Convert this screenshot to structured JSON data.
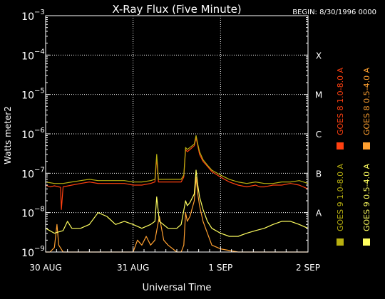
{
  "chart_data": {
    "type": "line",
    "title": "X-Ray Flux (Five Minute)",
    "begin_label": "BEGIN: 8/30/1996 0000",
    "ylabel": "Watts meter2",
    "xlabel": "Universal Time",
    "y_scale": "log",
    "ylim": [
      1e-09,
      0.001
    ],
    "xlim": [
      0,
      3
    ],
    "grid": true,
    "y_ticks": [
      {
        "value": 0.001,
        "base": "10",
        "exp": "−3"
      },
      {
        "value": 0.0001,
        "base": "10",
        "exp": "−4"
      },
      {
        "value": 1e-05,
        "base": "10",
        "exp": "−5"
      },
      {
        "value": 1e-06,
        "base": "10",
        "exp": "−6"
      },
      {
        "value": 1e-07,
        "base": "10",
        "exp": "−7"
      },
      {
        "value": 1e-08,
        "base": "10",
        "exp": "−8"
      },
      {
        "value": 1e-09,
        "base": "10",
        "exp": "−9"
      }
    ],
    "x_ticks": [
      {
        "value": 0,
        "label": "30 AUG"
      },
      {
        "value": 1,
        "label": "31 AUG"
      },
      {
        "value": 2,
        "label": "1 SEP"
      },
      {
        "value": 3,
        "label": "2 SEP"
      }
    ],
    "flare_classes": [
      {
        "label": "X",
        "value": 0.0001
      },
      {
        "label": "M",
        "value": 1e-05
      },
      {
        "label": "C",
        "value": 1e-06
      },
      {
        "label": "B",
        "value": 1e-07
      },
      {
        "label": "A",
        "value": 1e-08
      }
    ],
    "legend_placement": "right",
    "series": [
      {
        "name": "GOES 8 1.0-8.0 A",
        "color": "#ff4010",
        "x": [
          0.0,
          0.05,
          0.1,
          0.15,
          0.17,
          0.18,
          0.2,
          0.3,
          0.4,
          0.5,
          0.6,
          0.7,
          0.8,
          0.9,
          1.0,
          1.1,
          1.2,
          1.25,
          1.27,
          1.29,
          1.35,
          1.4,
          1.5,
          1.55,
          1.58,
          1.6,
          1.62,
          1.65,
          1.7,
          1.72,
          1.74,
          1.76,
          1.8,
          1.85,
          1.9,
          2.0,
          2.1,
          2.2,
          2.3,
          2.4,
          2.45,
          2.5,
          2.6,
          2.7,
          2.8,
          2.9,
          3.0
        ],
        "y": [
          5e-08,
          4.5e-08,
          4.8e-08,
          4.5e-08,
          4.4e-08,
          1.2e-08,
          4.5e-08,
          5e-08,
          5.5e-08,
          6e-08,
          5.5e-08,
          5.5e-08,
          5.5e-08,
          5.5e-08,
          5e-08,
          5e-08,
          5.5e-08,
          6e-08,
          2.5e-07,
          6e-08,
          6e-08,
          6e-08,
          6e-08,
          6e-08,
          8e-08,
          4e-07,
          3.5e-07,
          4e-07,
          5e-07,
          8e-07,
          5e-07,
          3e-07,
          2e-07,
          1.5e-07,
          1.1e-07,
          8e-08,
          6e-08,
          5e-08,
          4.5e-08,
          5e-08,
          4.5e-08,
          4.5e-08,
          5e-08,
          5e-08,
          5.5e-08,
          5e-08,
          4e-08
        ]
      },
      {
        "name": "GOES 8 0.5-4.0 A",
        "color": "#ffa030",
        "x": [
          0.0,
          0.05,
          0.1,
          0.13,
          0.15,
          0.2,
          0.25,
          0.3,
          0.5,
          0.7,
          0.9,
          1.0,
          1.05,
          1.1,
          1.15,
          1.2,
          1.25,
          1.3,
          1.35,
          1.4,
          1.5,
          1.55,
          1.58,
          1.6,
          1.62,
          1.65,
          1.7,
          1.72,
          1.74,
          1.76,
          1.8,
          1.85,
          1.9,
          2.0,
          2.2,
          2.5,
          2.8,
          3.0
        ],
        "y": [
          1e-09,
          1e-09,
          1.3e-09,
          5e-09,
          1.5e-09,
          1e-09,
          1e-09,
          1e-09,
          1e-09,
          1e-09,
          1e-09,
          1e-09,
          2e-09,
          1.5e-09,
          2.5e-09,
          1.5e-09,
          2e-09,
          8e-09,
          2e-09,
          1.5e-09,
          1e-09,
          1e-09,
          1.5e-09,
          1e-08,
          6e-09,
          8e-09,
          2e-08,
          8e-08,
          3e-08,
          1.5e-08,
          6e-09,
          3e-09,
          1.5e-09,
          1.2e-09,
          1e-09,
          1e-09,
          1e-09,
          1e-09
        ]
      },
      {
        "name": "GOES 9 1.0-8.0 A",
        "color": "#b8b010",
        "x": [
          0.0,
          0.1,
          0.2,
          0.3,
          0.4,
          0.5,
          0.6,
          0.7,
          0.8,
          0.9,
          1.0,
          1.1,
          1.2,
          1.25,
          1.27,
          1.29,
          1.35,
          1.4,
          1.5,
          1.55,
          1.58,
          1.6,
          1.62,
          1.65,
          1.7,
          1.72,
          1.74,
          1.76,
          1.8,
          1.85,
          1.9,
          2.0,
          2.1,
          2.2,
          2.3,
          2.4,
          2.5,
          2.6,
          2.7,
          2.8,
          2.9,
          3.0
        ],
        "y": [
          6e-08,
          5.5e-08,
          5.5e-08,
          6e-08,
          6.5e-08,
          7e-08,
          6.5e-08,
          6.5e-08,
          6.5e-08,
          6.5e-08,
          6e-08,
          6e-08,
          6.5e-08,
          7e-08,
          3e-07,
          7e-08,
          7e-08,
          7e-08,
          7e-08,
          7e-08,
          9e-08,
          4.5e-07,
          4e-07,
          4.5e-07,
          5.5e-07,
          9e-07,
          5.5e-07,
          3.5e-07,
          2.2e-07,
          1.6e-07,
          1.2e-07,
          9e-08,
          7e-08,
          6e-08,
          5.5e-08,
          6e-08,
          5.5e-08,
          5.5e-08,
          6e-08,
          6e-08,
          6.5e-08,
          5.5e-08
        ]
      },
      {
        "name": "GOES 9 0.5-4.0 A",
        "color": "#ffff60",
        "x": [
          0.0,
          0.1,
          0.2,
          0.25,
          0.3,
          0.4,
          0.5,
          0.6,
          0.7,
          0.8,
          0.9,
          1.0,
          1.1,
          1.2,
          1.25,
          1.27,
          1.3,
          1.4,
          1.5,
          1.55,
          1.6,
          1.62,
          1.65,
          1.7,
          1.72,
          1.74,
          1.76,
          1.8,
          1.85,
          1.9,
          2.0,
          2.1,
          2.2,
          2.3,
          2.4,
          2.5,
          2.6,
          2.7,
          2.8,
          2.9,
          3.0
        ],
        "y": [
          4e-09,
          3e-09,
          3.5e-09,
          6e-09,
          4e-09,
          4e-09,
          5e-09,
          1e-08,
          8e-09,
          5e-09,
          6e-09,
          5e-09,
          4e-09,
          5e-09,
          6e-09,
          2.5e-08,
          6e-09,
          4e-09,
          4e-09,
          5e-09,
          2e-08,
          1.5e-08,
          1.8e-08,
          3e-08,
          1.2e-07,
          5e-08,
          2.5e-08,
          1.2e-08,
          6e-09,
          4e-09,
          3e-09,
          2.5e-09,
          2.5e-09,
          3e-09,
          3.5e-09,
          4e-09,
          5e-09,
          6e-09,
          6e-09,
          5e-09,
          4e-09
        ]
      }
    ]
  }
}
